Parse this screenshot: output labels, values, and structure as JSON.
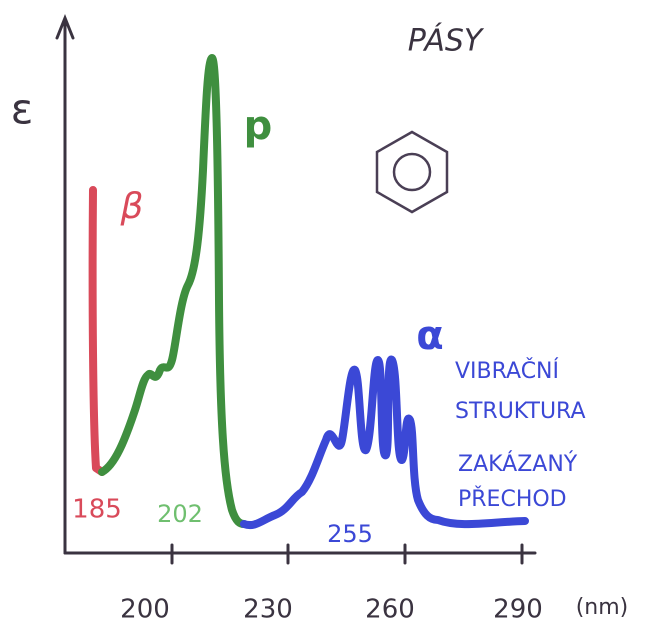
{
  "title": "PÁSY",
  "axes": {
    "y_label": "ε",
    "x_unit": "(nm)",
    "x_ticks": [
      "200",
      "230",
      "260",
      "290"
    ]
  },
  "bands": [
    {
      "name": "β",
      "peak_label": "185"
    },
    {
      "name": "p",
      "peak_label": "202"
    },
    {
      "name": "α",
      "peak_label": "255",
      "notes": [
        "VIBRAČNÍ",
        "STRUKTURA",
        "ZAKÁZANÝ",
        "PŘECHOD"
      ]
    }
  ]
}
